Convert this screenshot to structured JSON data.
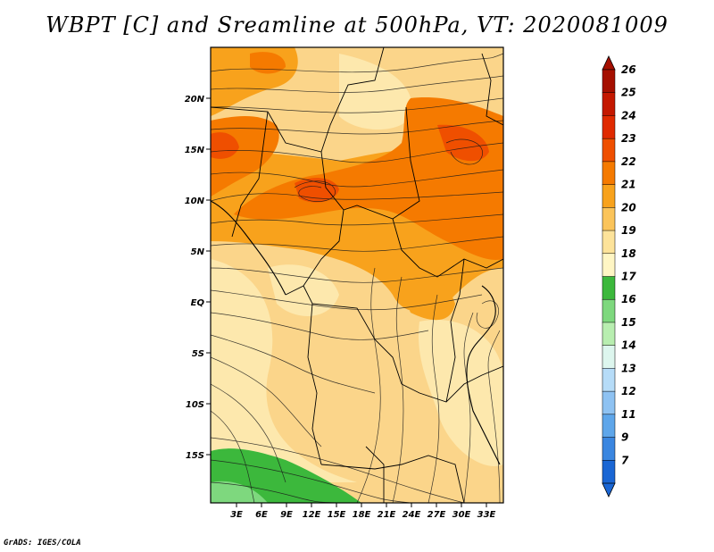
{
  "title": "WBPT [C] and Sreamline at 500hPa, VT: 2020081009",
  "credit": "GrADS: IGES/COLA",
  "y_axis_labels": [
    "20N",
    "15N",
    "10N",
    "5N",
    "EQ",
    "5S",
    "10S",
    "15S"
  ],
  "x_axis_labels": [
    "3E",
    "6E",
    "9E",
    "12E",
    "15E",
    "18E",
    "21E",
    "24E",
    "27E",
    "30E",
    "33E"
  ],
  "colorbar": {
    "labels": [
      "26",
      "25",
      "24",
      "23",
      "22",
      "21",
      "20",
      "19",
      "18",
      "17",
      "16",
      "15",
      "14",
      "13",
      "12",
      "11",
      "9",
      "7"
    ],
    "colors": [
      "#a50f00",
      "#c41800",
      "#e02a00",
      "#ef4f00",
      "#f57a00",
      "#f8a21c",
      "#fbc45a",
      "#fde39a",
      "#fff6c4",
      "#3cb83c",
      "#7ed87e",
      "#b8eeb0",
      "#ddf6ee",
      "#b6dcf8",
      "#8ec2f2",
      "#5ea6ea",
      "#3a86e0",
      "#1a66d4"
    ]
  },
  "field": {
    "variable": "WBPT",
    "units": "C",
    "level": "500hPa",
    "valid_time": "2020081009"
  }
}
